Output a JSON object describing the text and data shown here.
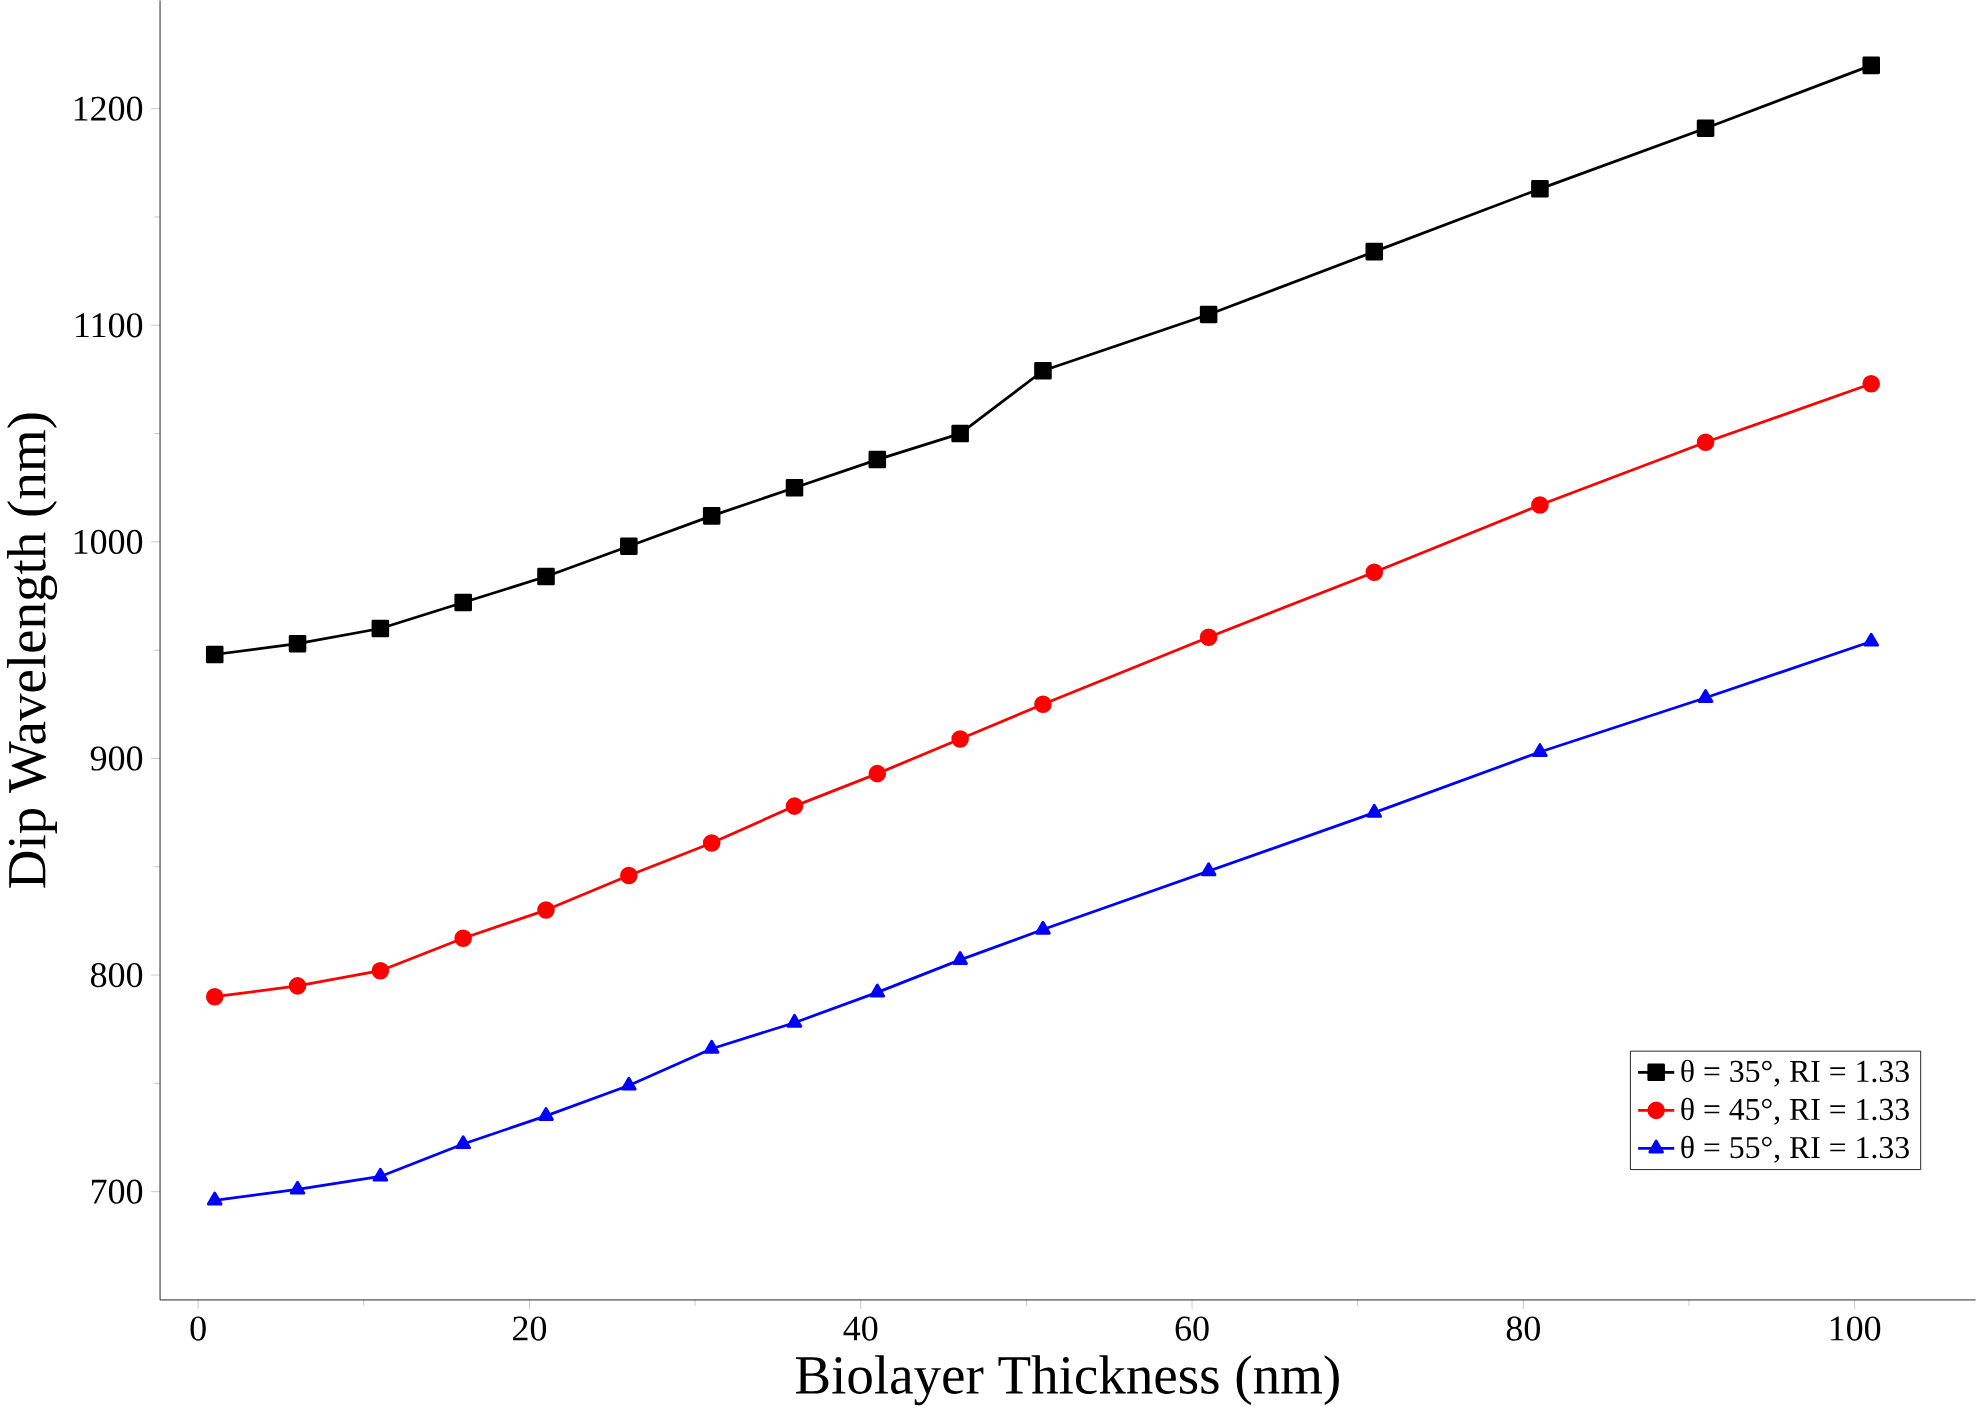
{
  "chart_data": {
    "type": "line",
    "xlabel": "Biolayer Thickness (nm)",
    "ylabel": "Dip Wavelength (nm)",
    "x": [
      1,
      6,
      11,
      16,
      21,
      26,
      31,
      36,
      41,
      46,
      51,
      61,
      71,
      81,
      91,
      101
    ],
    "series": [
      {
        "name": "θ = 35°, RI = 1.33",
        "color": "#000000",
        "marker": "square",
        "values": [
          948,
          953,
          960,
          972,
          984,
          998,
          1012,
          1025,
          1038,
          1050,
          1079,
          1105,
          1134,
          1163,
          1191,
          1220
        ]
      },
      {
        "name": "θ = 45°, RI = 1.33",
        "color": "#ff0000",
        "marker": "circle",
        "values": [
          790,
          795,
          802,
          817,
          830,
          846,
          861,
          878,
          893,
          909,
          925,
          956,
          986,
          1017,
          1046,
          1073
        ]
      },
      {
        "name": "θ = 55°, RI = 1.33",
        "color": "#0000ff",
        "marker": "triangle",
        "values": [
          696,
          701,
          707,
          722,
          735,
          749,
          766,
          778,
          792,
          807,
          821,
          848,
          875,
          903,
          928,
          954
        ]
      }
    ],
    "xlim": [
      -2.3,
      107.3
    ],
    "ylim": [
      650,
      1250
    ],
    "xticks": [
      0,
      20,
      40,
      60,
      80,
      100
    ],
    "yticks": [
      700,
      800,
      900,
      1000,
      1100,
      1200
    ],
    "legend": "bottom right",
    "grid": false,
    "line_style": "solid"
  }
}
